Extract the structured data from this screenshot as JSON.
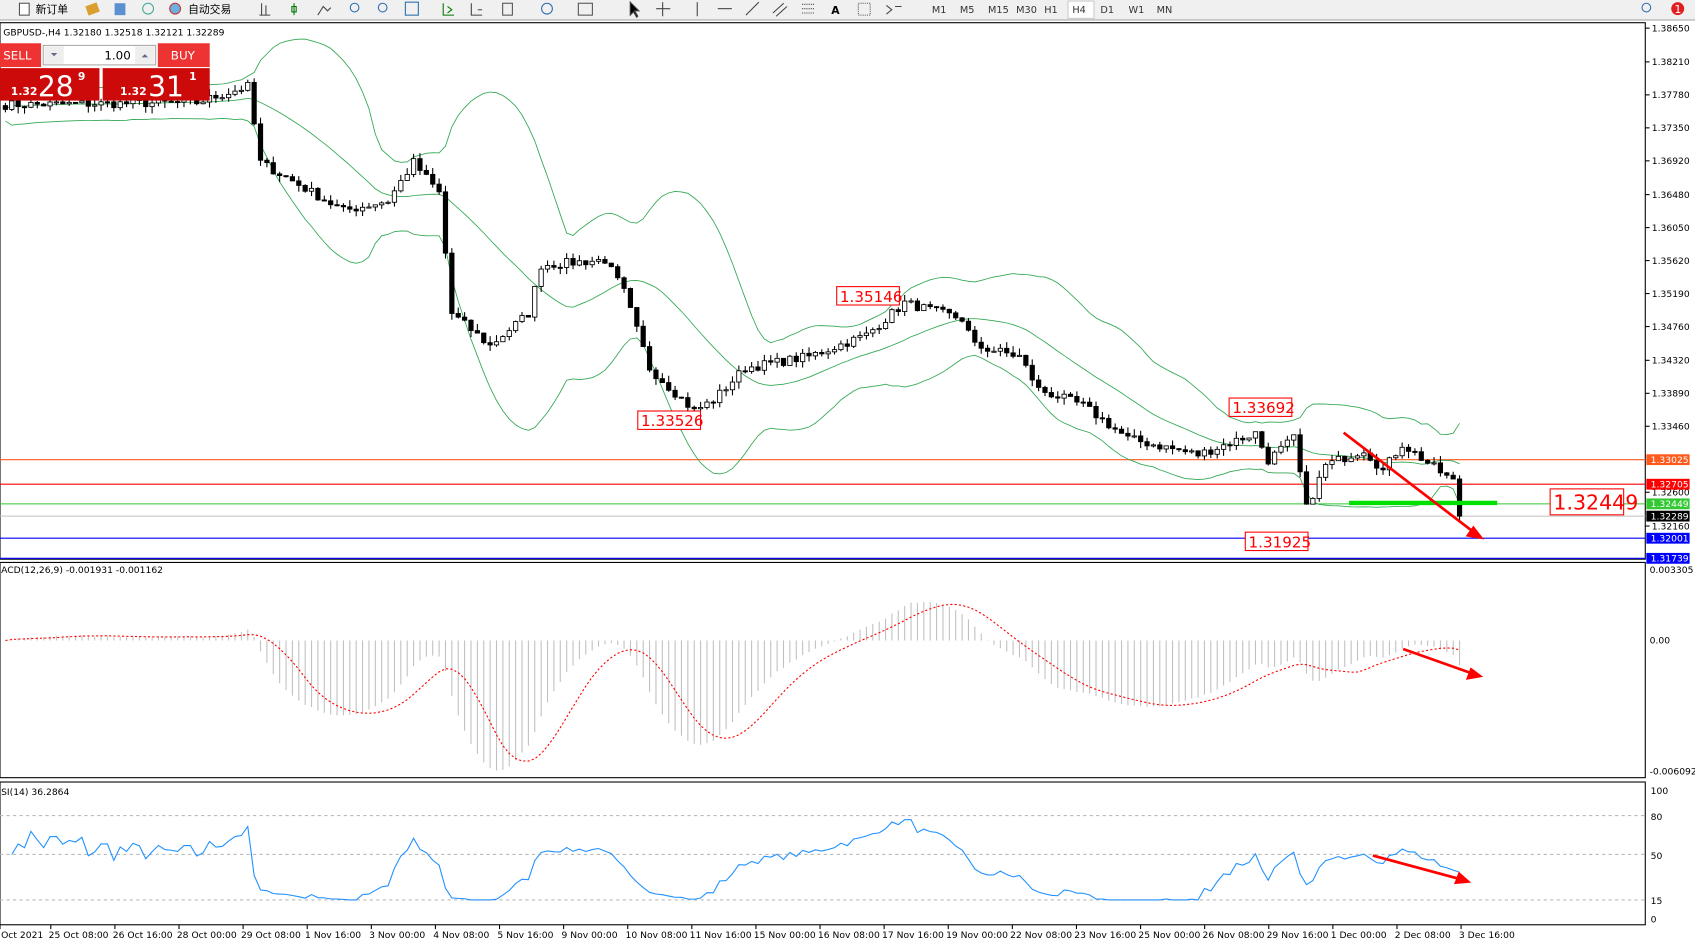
{
  "toolbar": {
    "new_order": "新订单",
    "auto_trading": "自动交易",
    "timeframes": [
      "M1",
      "M5",
      "M15",
      "M30",
      "H1",
      "H4",
      "D1",
      "W1",
      "MN"
    ],
    "active_timeframe": "H4",
    "alert_count": "1"
  },
  "chart": {
    "info": "GBPUSD-,H4  1.32180 1.32518 1.32121 1.32289",
    "price_axis": [
      "1.38650",
      "1.38210",
      "1.37780",
      "1.37350",
      "1.36920",
      "1.36480",
      "1.36050",
      "1.35620",
      "1.35190",
      "1.34760",
      "1.34320",
      "1.33890",
      "1.33460",
      "1.32600",
      "1.32160"
    ],
    "levels": [
      {
        "price": 1.33025,
        "label": "1.33025",
        "color": "#ff5a1e"
      },
      {
        "price": 1.32705,
        "label": "1.32705",
        "color": "#ff0000"
      },
      {
        "price": 1.32449,
        "label": "1.32449",
        "color": "#32c832"
      },
      {
        "price": 1.32289,
        "label": "1.32289",
        "color": "#000000"
      },
      {
        "price": 1.32001,
        "label": "1.32001",
        "color": "#0000ff"
      },
      {
        "price": 1.31739,
        "label": "1.31739",
        "color": "#0000ff"
      }
    ],
    "annotations": [
      "1.35146",
      "1.33526",
      "1.33692",
      "1.31925",
      "1.32449"
    ],
    "price_path": [
      [
        0,
        1.3765
      ],
      [
        30,
        1.3768
      ],
      [
        38,
        1.3789
      ],
      [
        40,
        1.369
      ],
      [
        53,
        1.3627
      ],
      [
        60,
        1.364
      ],
      [
        64,
        1.369
      ],
      [
        68,
        1.365
      ],
      [
        70,
        1.3493
      ],
      [
        76,
        1.3451
      ],
      [
        82,
        1.3493
      ],
      [
        84,
        1.3556
      ],
      [
        94,
        1.3563
      ],
      [
        97,
        1.3521
      ],
      [
        101,
        1.3422
      ],
      [
        108,
        1.3366
      ],
      [
        111,
        1.338
      ],
      [
        116,
        1.3422
      ],
      [
        126,
        1.3437
      ],
      [
        135,
        1.3465
      ],
      [
        141,
        1.3507
      ],
      [
        150,
        1.3486
      ],
      [
        152,
        1.3451
      ],
      [
        159,
        1.3437
      ],
      [
        162,
        1.3394
      ],
      [
        169,
        1.3373
      ],
      [
        176,
        1.333
      ],
      [
        187,
        1.3309
      ],
      [
        196,
        1.3337
      ],
      [
        198,
        1.3302
      ],
      [
        202,
        1.333
      ],
      [
        204,
        1.3239
      ],
      [
        207,
        1.3295
      ],
      [
        213,
        1.3316
      ],
      [
        216,
        1.3288
      ],
      [
        219,
        1.3323
      ],
      [
        227,
        1.3274
      ],
      [
        228,
        1.3229
      ]
    ],
    "bollinger_color": "#32a852",
    "time_axis": [
      "Oct 2021",
      "25 Oct 08:00",
      "26 Oct 16:00",
      "28 Oct 00:00",
      "29 Oct 08:00",
      "1 Nov 16:00",
      "3 Nov 00:00",
      "4 Nov 08:00",
      "5 Nov 16:00",
      "9 Nov 00:00",
      "10 Nov 08:00",
      "11 Nov 16:00",
      "15 Nov 00:00",
      "16 Nov 08:00",
      "17 Nov 16:00",
      "19 Nov 00:00",
      "22 Nov 08:00",
      "23 Nov 16:00",
      "25 Nov 00:00",
      "26 Nov 08:00",
      "29 Nov 16:00",
      "1 Dec 00:00",
      "2 Dec 08:00",
      "3 Dec 16:00"
    ]
  },
  "trade_panel": {
    "sell_label": "SELL",
    "buy_label": "BUY",
    "volume": "1.00",
    "sell_prefix": "1.32",
    "sell_big": "28",
    "sell_sup": "9",
    "buy_prefix": "1.32",
    "buy_big": "31",
    "buy_sup": "1"
  },
  "macd": {
    "info": "ACD(12,26,9) -0.001931 -0.001162",
    "axis": [
      "0.003305",
      "0.00",
      "-0.006092"
    ],
    "max": 0.003305,
    "min": -0.006092
  },
  "rsi": {
    "info": "SI(14) 36.2864",
    "axis": [
      "100",
      "80",
      "50",
      "15",
      "0"
    ],
    "levels": [
      80,
      50,
      15
    ],
    "color": "#1e90ff"
  }
}
